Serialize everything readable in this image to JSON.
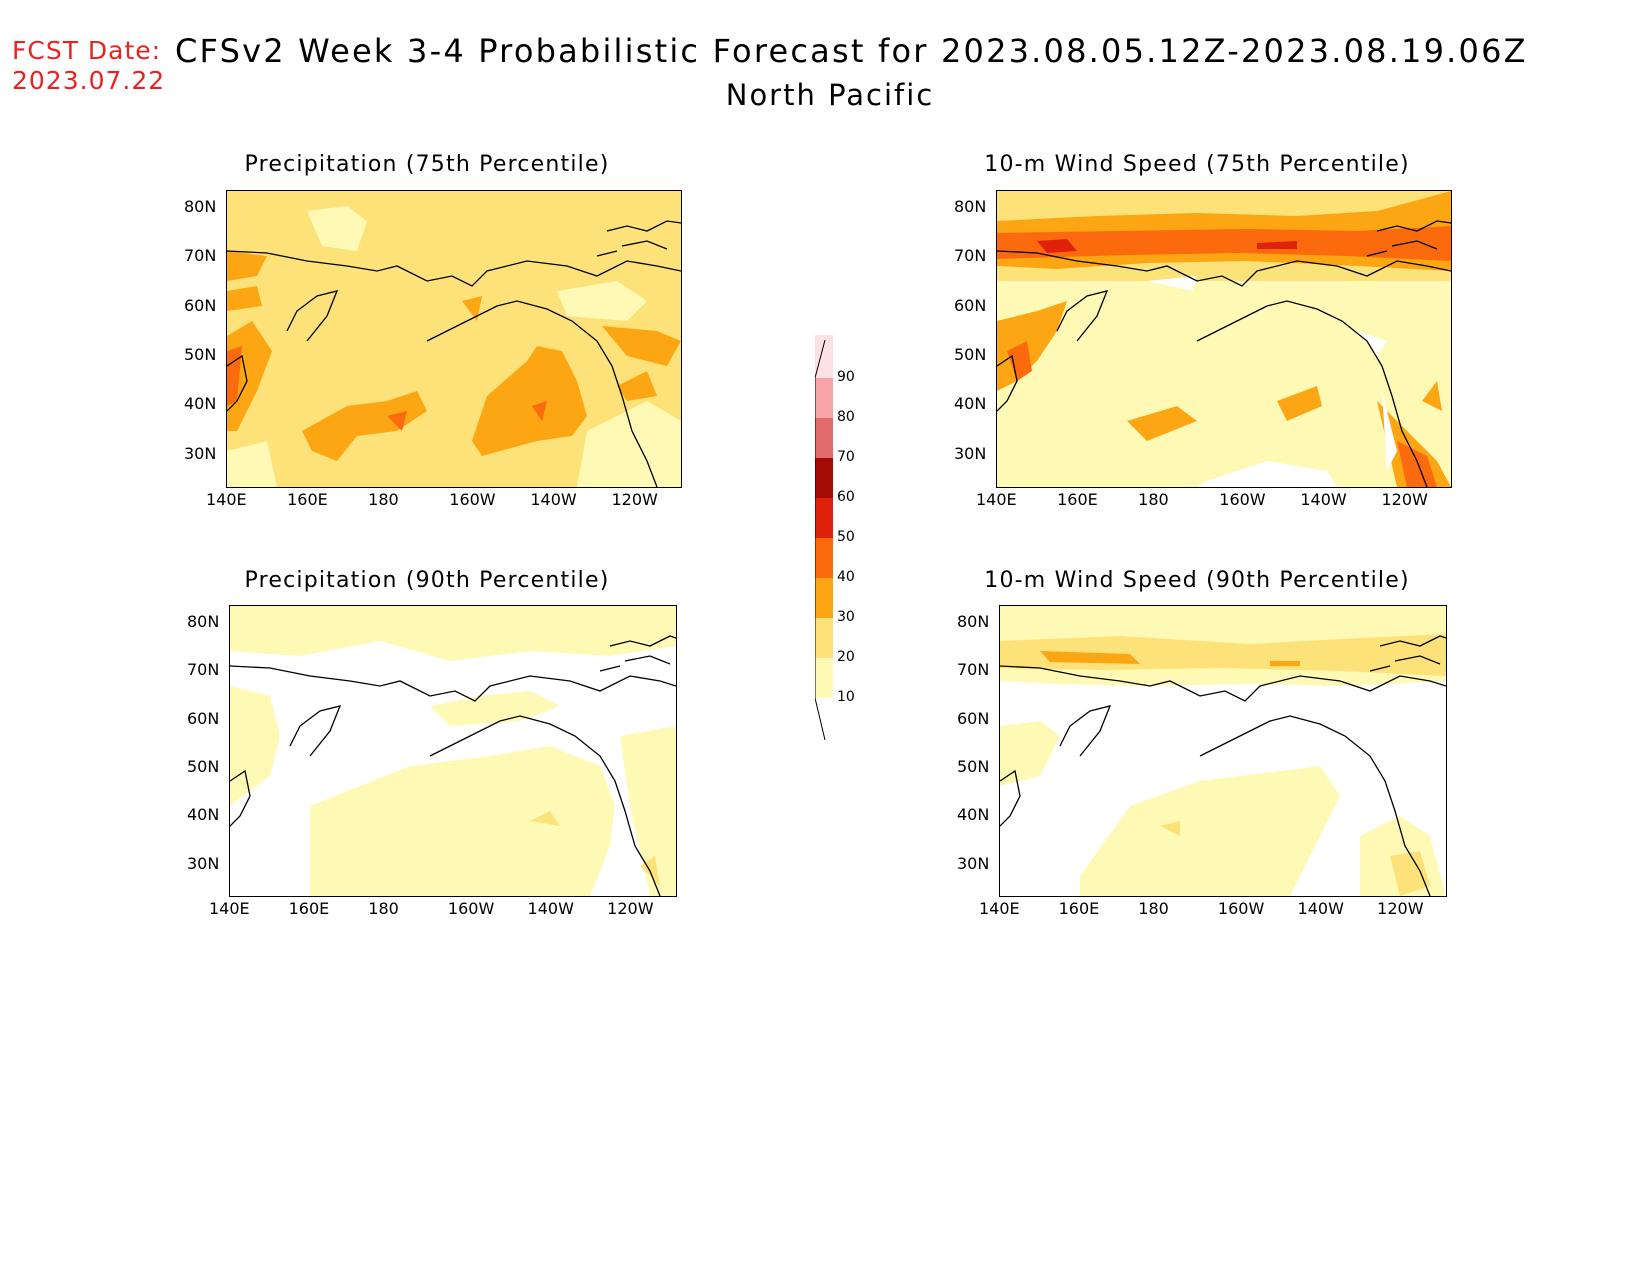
{
  "header": {
    "fcst_label": "FCST Date:",
    "fcst_date": "2023.07.22",
    "title": "CFSv2 Week 3-4 Probabilistic Forecast for 2023.08.05.12Z-2023.08.19.06Z",
    "region": "North Pacific"
  },
  "axes": {
    "lon_ticks": [
      "140E",
      "160E",
      "180",
      "160W",
      "140W",
      "120W"
    ],
    "lat_ticks": [
      "80N",
      "70N",
      "60N",
      "50N",
      "40N",
      "30N"
    ]
  },
  "panels": [
    {
      "id": "precip75",
      "title": "Precipitation (75th Percentile)"
    },
    {
      "id": "wind75",
      "title": "10-m Wind Speed (75th Percentile)"
    },
    {
      "id": "precip90",
      "title": "Precipitation (90th Percentile)"
    },
    {
      "id": "wind90",
      "title": "10-m Wind Speed (90th Percentile)"
    }
  ],
  "colorbar": {
    "levels": [
      "10",
      "20",
      "30",
      "40",
      "50",
      "60",
      "70",
      "80",
      "90"
    ],
    "colors": [
      "#fef9b4",
      "#fde27a",
      "#fca614",
      "#fb6a0c",
      "#e0210b",
      "#a20b06",
      "#df6b6b",
      "#f5a4a8",
      "#fde1e5"
    ]
  }
}
